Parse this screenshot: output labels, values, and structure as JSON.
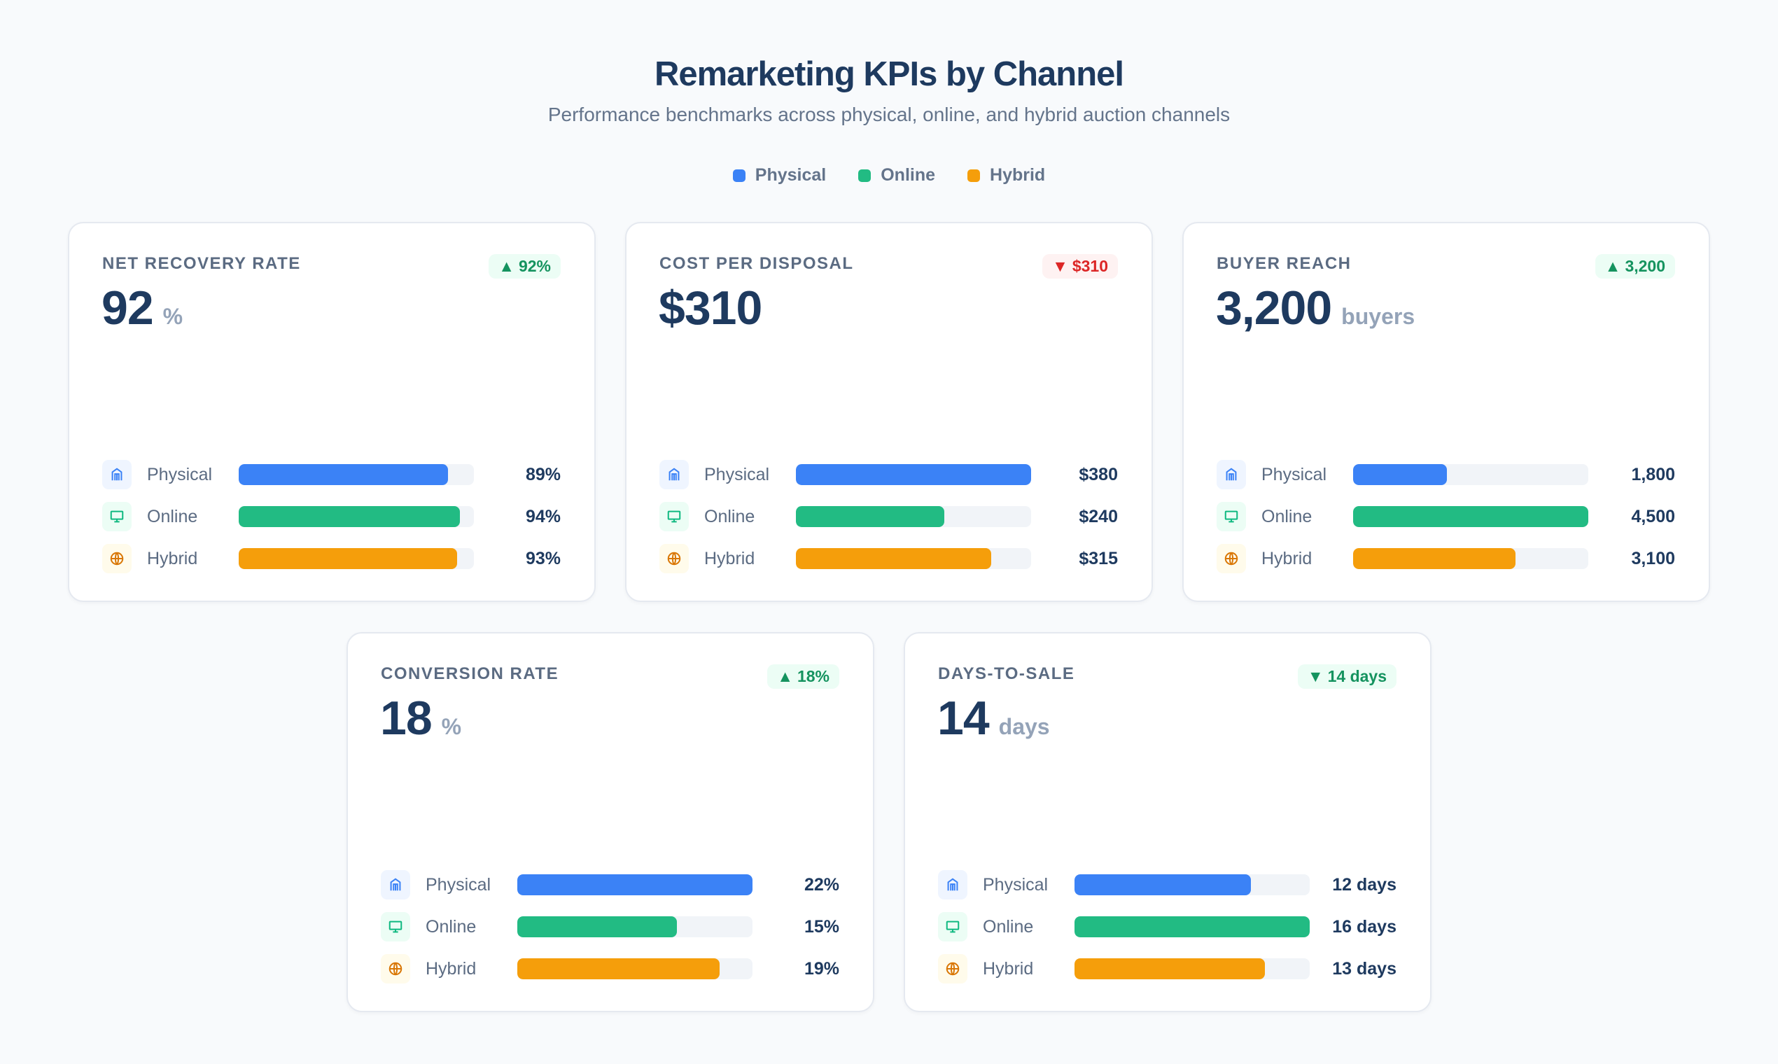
{
  "header": {
    "title": "Remarketing KPIs by Channel",
    "subtitle": "Performance benchmarks across physical, online, and hybrid auction channels"
  },
  "legend": [
    {
      "label": "Physical",
      "color": "#3b82f6"
    },
    {
      "label": "Online",
      "color": "#22bb83"
    },
    {
      "label": "Hybrid",
      "color": "#f59e0b"
    }
  ],
  "chart_data": {
    "type": "bar",
    "categories": [
      "Physical",
      "Online",
      "Hybrid"
    ],
    "cards": [
      {
        "label": "NET RECOVERY RATE",
        "value": "92",
        "unit": "%",
        "badge": "92%",
        "trend": "up",
        "rows": [
          {
            "channel": "Physical",
            "value": "89%",
            "fill": 0.89
          },
          {
            "channel": "Online",
            "value": "94%",
            "fill": 0.94
          },
          {
            "channel": "Hybrid",
            "value": "93%",
            "fill": 0.93
          }
        ]
      },
      {
        "label": "COST PER DISPOSAL",
        "value": "$310",
        "unit": "",
        "badge": "$310",
        "trend": "down-bad",
        "rows": [
          {
            "channel": "Physical",
            "value": "$380",
            "fill": 1.0
          },
          {
            "channel": "Online",
            "value": "$240",
            "fill": 0.63
          },
          {
            "channel": "Hybrid",
            "value": "$315",
            "fill": 0.83
          }
        ]
      },
      {
        "label": "BUYER REACH",
        "value": "3,200",
        "unit": "buyers",
        "badge": "3,200",
        "trend": "up",
        "rows": [
          {
            "channel": "Physical",
            "value": "1,800",
            "fill": 0.4
          },
          {
            "channel": "Online",
            "value": "4,500",
            "fill": 1.0
          },
          {
            "channel": "Hybrid",
            "value": "3,100",
            "fill": 0.69
          }
        ]
      },
      {
        "label": "CONVERSION RATE",
        "value": "18",
        "unit": "%",
        "badge": "18%",
        "trend": "up",
        "rows": [
          {
            "channel": "Physical",
            "value": "22%",
            "fill": 1.0
          },
          {
            "channel": "Online",
            "value": "15%",
            "fill": 0.68
          },
          {
            "channel": "Hybrid",
            "value": "19%",
            "fill": 0.86
          }
        ]
      },
      {
        "label": "DAYS-TO-SALE",
        "value": "14",
        "unit": "days",
        "badge": "14 days",
        "trend": "down-good",
        "rows": [
          {
            "channel": "Physical",
            "value": "12 days",
            "fill": 0.75
          },
          {
            "channel": "Online",
            "value": "16 days",
            "fill": 1.0
          },
          {
            "channel": "Hybrid",
            "value": "13 days",
            "fill": 0.81
          }
        ]
      }
    ]
  },
  "icons": {
    "Physical": "building-icon",
    "Online": "monitor-icon",
    "Hybrid": "globe-icon"
  }
}
